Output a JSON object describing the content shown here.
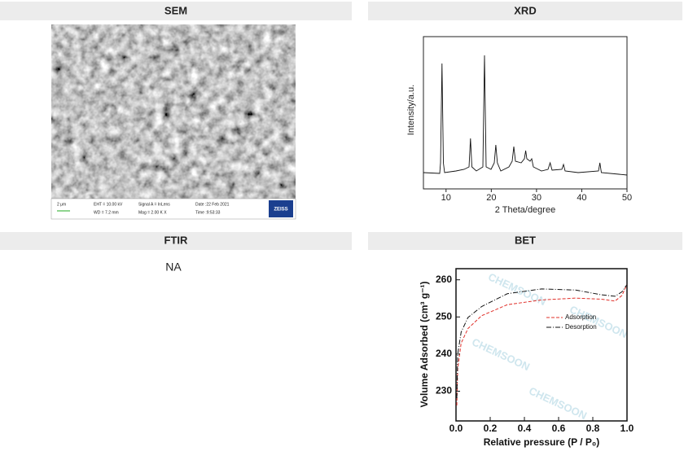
{
  "sem": {
    "title": "SEM",
    "info": {
      "eht": "EHT = 10.00 kV",
      "wd": "WD = 7.2 mm",
      "signal": "Signal A = InLens",
      "mag": "Mag =  2.00 K X",
      "date": "Date :22 Feb 2021",
      "time": "Time :9:53:33",
      "scale": "2 μm",
      "brand": "ZEISS"
    }
  },
  "xrd": {
    "title": "XRD",
    "x_label": "2 Theta/degree",
    "y_label": "Intensity/a.u.",
    "xlim": [
      5,
      50
    ],
    "xticks": [
      10,
      20,
      30,
      40,
      50
    ]
  },
  "ftir": {
    "title": "FTIR",
    "text": "NA"
  },
  "bet": {
    "title": "BET",
    "x_label": "Relative pressure (P / P₀)",
    "y_label": "Volume Adsorbed (cm³ g⁻¹)",
    "xlim": [
      0,
      1
    ],
    "ylim": [
      222,
      263
    ],
    "xticks": [
      {
        "value": 0,
        "label": "0.0"
      },
      {
        "value": 0.2,
        "label": "0.2"
      },
      {
        "value": 0.4,
        "label": "0.4"
      },
      {
        "value": 0.6,
        "label": "0.6"
      },
      {
        "value": 0.8,
        "label": "0.8"
      },
      {
        "value": 1,
        "label": "1.0"
      }
    ],
    "yticks": [
      230,
      240,
      250,
      260
    ],
    "series": [
      {
        "name": "Adsorption",
        "color": "#e0302a"
      },
      {
        "name": "Desorption",
        "color": "#111111"
      }
    ],
    "watermark": "CHEMSOON"
  }
}
